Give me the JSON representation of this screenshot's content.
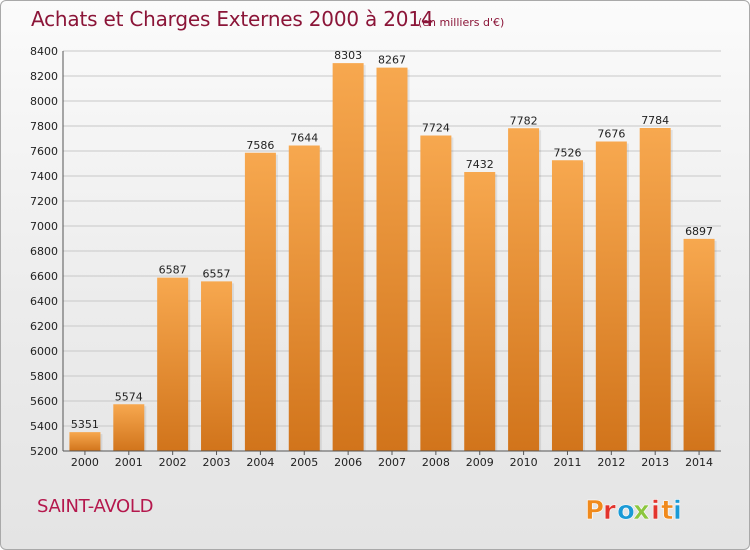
{
  "header": {
    "title": "Achats et Charges Externes 2000 à 2014",
    "subtitle": "(en milliers d'€)"
  },
  "footer": {
    "city": "SAINT-AVOLD",
    "logo_text": "Proxiti"
  },
  "colors": {
    "title": "#8b1538",
    "city": "#b5184d",
    "bar_light": "#f7a84f",
    "bar_dark": "#d1741b",
    "grid": "#c8c8c8",
    "logo_letters": [
      "#f08a1c",
      "#e2342d",
      "#1a9ad6",
      "#8cc63f",
      "#e2342d",
      "#f08a1c",
      "#1a9ad6"
    ]
  },
  "chart_data": {
    "type": "bar",
    "title": "Achats et Charges Externes 2000 à 2014",
    "subtitle": "(en milliers d'€)",
    "categories": [
      "2000",
      "2001",
      "2002",
      "2003",
      "2004",
      "2005",
      "2006",
      "2007",
      "2008",
      "2009",
      "2010",
      "2011",
      "2012",
      "2013",
      "2014"
    ],
    "values": [
      5351,
      5574,
      6587,
      6557,
      7586,
      7644,
      8303,
      8267,
      7724,
      7432,
      7782,
      7526,
      7676,
      7784,
      6897
    ],
    "ylim": [
      5200,
      8400
    ],
    "yticks": [
      5200,
      5400,
      5600,
      5800,
      6000,
      6200,
      6400,
      6600,
      6800,
      7000,
      7200,
      7400,
      7600,
      7800,
      8000,
      8200,
      8400
    ],
    "xlabel": "",
    "ylabel": "",
    "grid": true,
    "data_labels": true
  }
}
